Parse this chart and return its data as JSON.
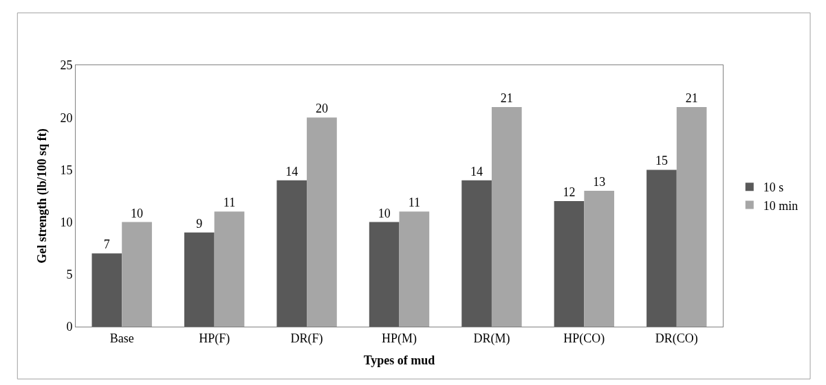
{
  "chart_data": {
    "type": "bar",
    "xlabel": "Types of mud",
    "ylabel": "Gel strength (lb/100 sq ft)",
    "categories": [
      "Base",
      "HP(F)",
      "DR(F)",
      "HP(M)",
      "DR(M)",
      "HP(CO)",
      "DR(CO)"
    ],
    "series": [
      {
        "name": "10 s",
        "color": "#595959",
        "values": [
          7,
          9,
          14,
          10,
          14,
          12,
          15
        ]
      },
      {
        "name": "10 min",
        "color": "#a6a6a6",
        "values": [
          10,
          11,
          20,
          11,
          21,
          13,
          21
        ]
      }
    ],
    "ylim": [
      0,
      25
    ],
    "yticks": [
      0,
      5,
      10,
      15,
      20,
      25
    ],
    "data_labels": true,
    "legend": "right"
  }
}
